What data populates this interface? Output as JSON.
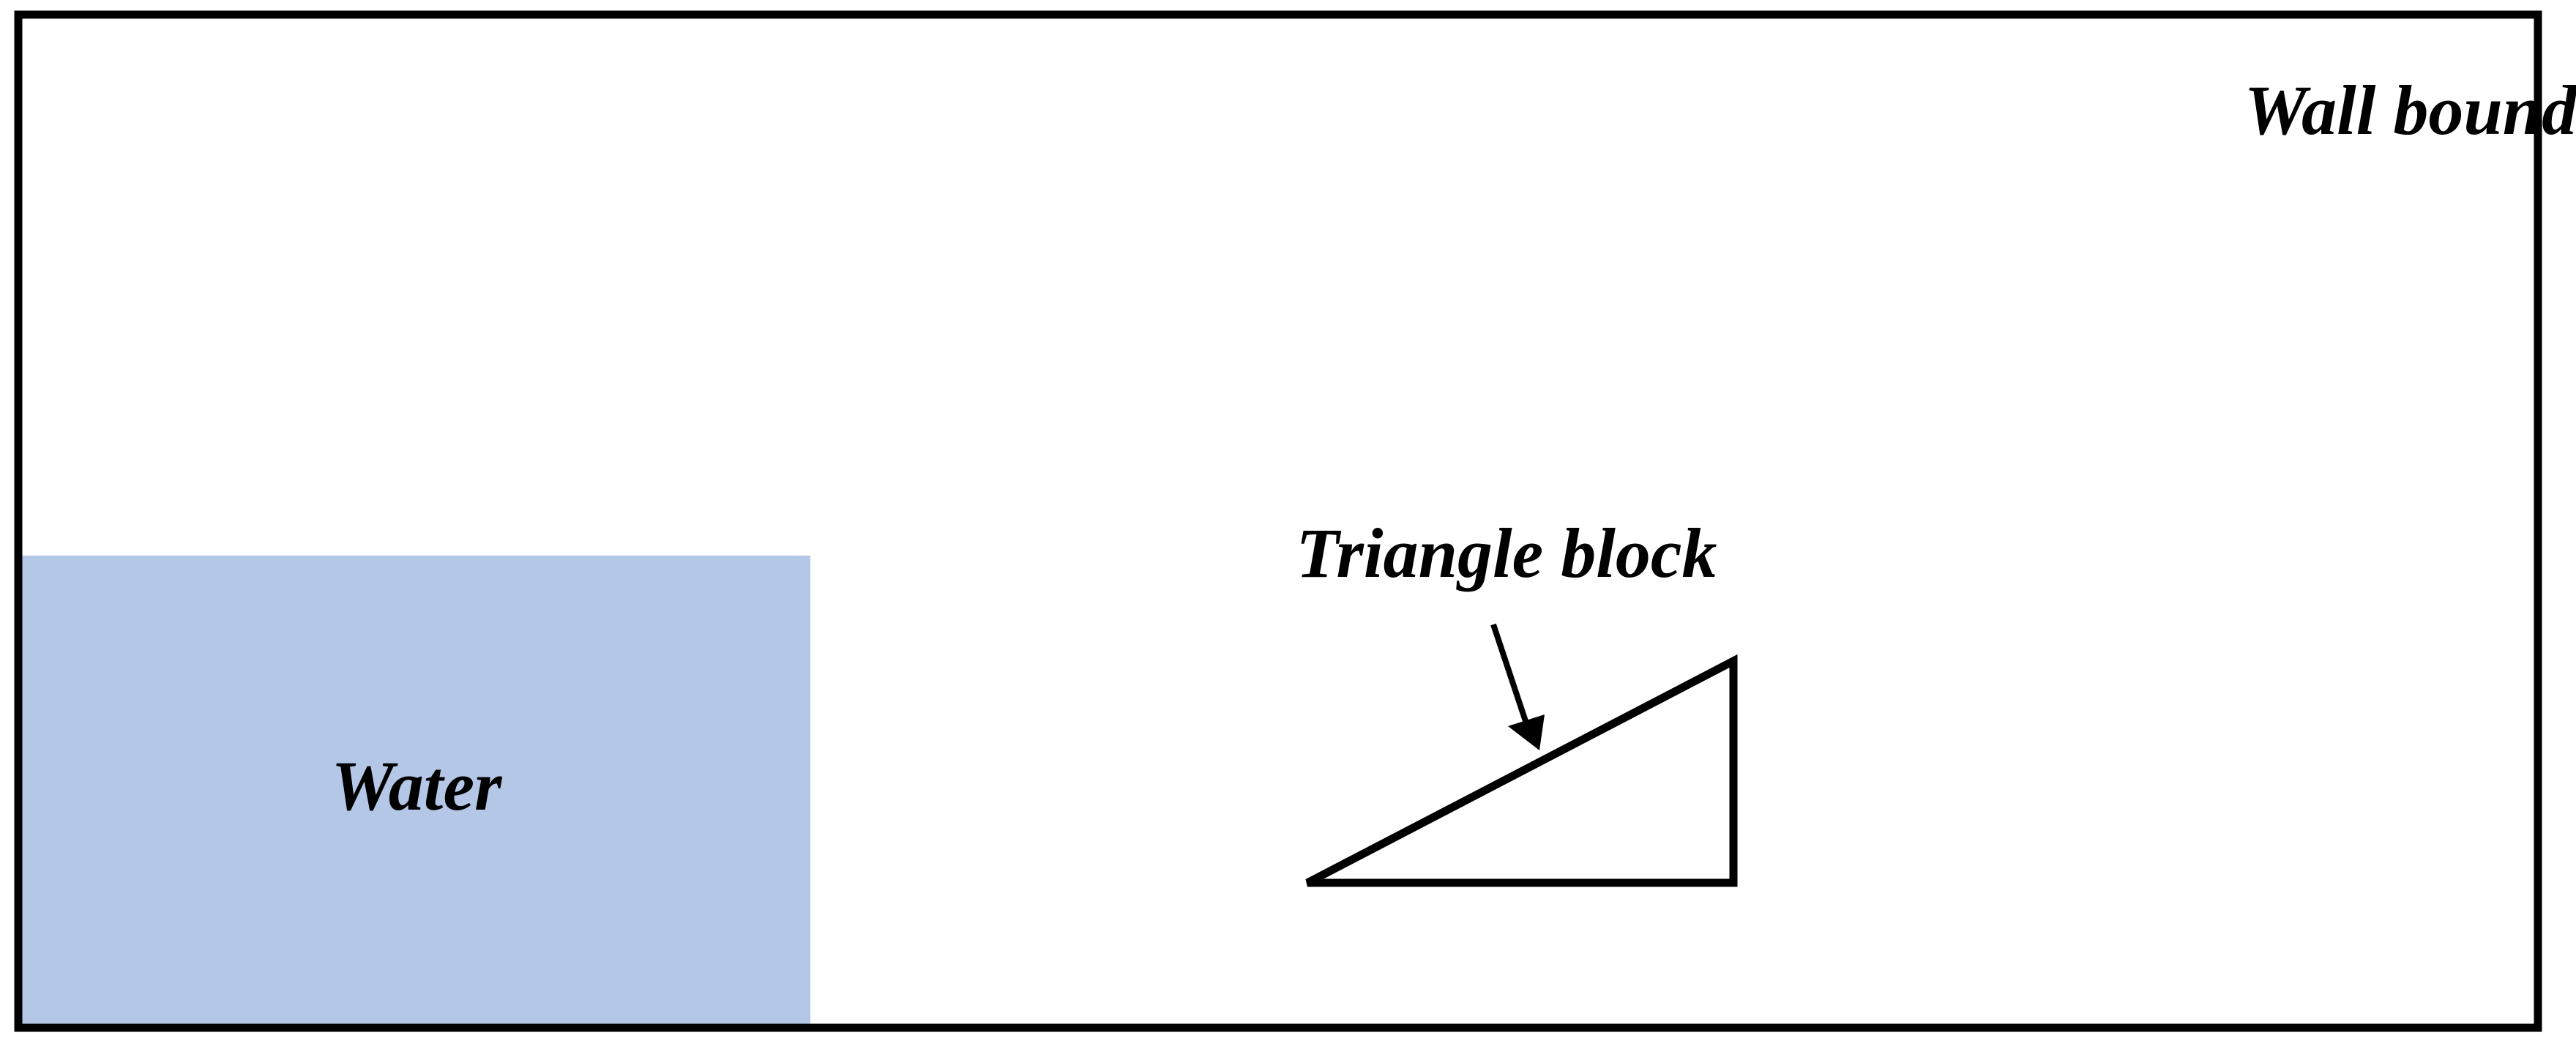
{
  "labels": {
    "wall": "Wall boundary",
    "water": "Water",
    "triangle": "Triangle block"
  },
  "colors": {
    "water": "#b4c7e7",
    "stroke": "#000000",
    "background": "#ffffff"
  }
}
